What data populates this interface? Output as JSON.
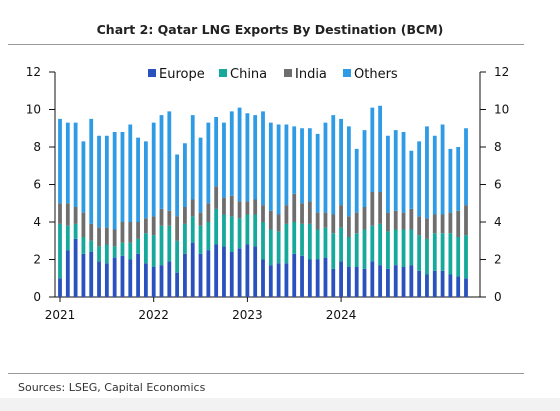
{
  "title": "Chart 2: Qatar LNG Exports By Destination (BCM)",
  "source": "Sources: LSEG, Capital Economics",
  "chart_data": {
    "type": "bar",
    "stacked": true,
    "ylim": [
      0,
      12
    ],
    "yticks": [
      0,
      2,
      4,
      6,
      8,
      10,
      12
    ],
    "xtick_labels": [
      "2021",
      "2022",
      "2023",
      "2024"
    ],
    "legend_position": "top",
    "series": [
      {
        "name": "Europe",
        "color": "#2a52be",
        "values": [
          1.0,
          2.5,
          3.1,
          2.3,
          2.4,
          1.9,
          1.8,
          2.1,
          2.2,
          2.0,
          2.3,
          1.8,
          1.6,
          1.7,
          1.9,
          1.3,
          2.3,
          2.9,
          2.3,
          2.5,
          2.8,
          2.7,
          2.4,
          2.6,
          2.8,
          2.7,
          2.0,
          1.7,
          1.8,
          1.8,
          2.3,
          2.2,
          2.0,
          2.0,
          2.1,
          1.5,
          1.9,
          1.6,
          1.6,
          1.5,
          1.9,
          1.7,
          1.5,
          1.7,
          1.6,
          1.7,
          1.4,
          1.2,
          1.4,
          1.4,
          1.2,
          1.1,
          1.0
        ]
      },
      {
        "name": "China",
        "color": "#16a89a",
        "values": [
          2.9,
          1.3,
          0.8,
          0.9,
          0.6,
          0.8,
          1.0,
          0.6,
          0.7,
          0.9,
          0.8,
          1.6,
          1.7,
          2.1,
          1.9,
          1.7,
          1.6,
          1.4,
          1.5,
          1.5,
          1.9,
          1.7,
          1.9,
          1.6,
          1.6,
          1.7,
          2.0,
          1.9,
          1.7,
          2.1,
          1.7,
          1.7,
          1.9,
          1.6,
          1.6,
          1.9,
          1.8,
          1.6,
          1.8,
          2.1,
          1.9,
          2.2,
          2.0,
          1.9,
          2.0,
          1.9,
          1.9,
          1.9,
          2.0,
          2.0,
          2.2,
          2.1,
          2.3
        ]
      },
      {
        "name": "India",
        "color": "#6e6e6e",
        "values": [
          1.1,
          1.2,
          0.9,
          1.3,
          0.9,
          1.0,
          0.9,
          0.9,
          1.1,
          1.1,
          0.9,
          0.8,
          1.0,
          0.9,
          0.8,
          1.3,
          0.9,
          0.9,
          0.7,
          1.0,
          1.2,
          0.9,
          1.1,
          0.9,
          0.7,
          0.8,
          0.9,
          1.0,
          0.9,
          1.0,
          1.5,
          1.1,
          1.2,
          0.9,
          0.8,
          1.0,
          1.2,
          1.1,
          1.1,
          1.2,
          1.8,
          1.7,
          1.0,
          1.0,
          0.9,
          1.1,
          1.0,
          1.1,
          1.0,
          1.0,
          1.1,
          1.4,
          1.6
        ]
      },
      {
        "name": "Others",
        "color": "#2f9be5",
        "values": [
          4.5,
          4.3,
          4.5,
          3.8,
          5.6,
          4.9,
          4.9,
          5.2,
          4.8,
          5.2,
          4.5,
          4.1,
          5.0,
          5.0,
          5.3,
          3.3,
          3.4,
          4.5,
          4.0,
          4.3,
          3.7,
          4.0,
          4.5,
          5.0,
          4.7,
          4.5,
          5.0,
          4.7,
          4.8,
          4.3,
          3.6,
          4.0,
          3.9,
          4.2,
          4.8,
          5.3,
          4.6,
          4.8,
          3.4,
          4.1,
          4.5,
          4.6,
          4.1,
          4.3,
          4.3,
          3.1,
          4.0,
          4.9,
          4.2,
          4.8,
          3.4,
          3.4,
          4.1
        ]
      }
    ]
  }
}
